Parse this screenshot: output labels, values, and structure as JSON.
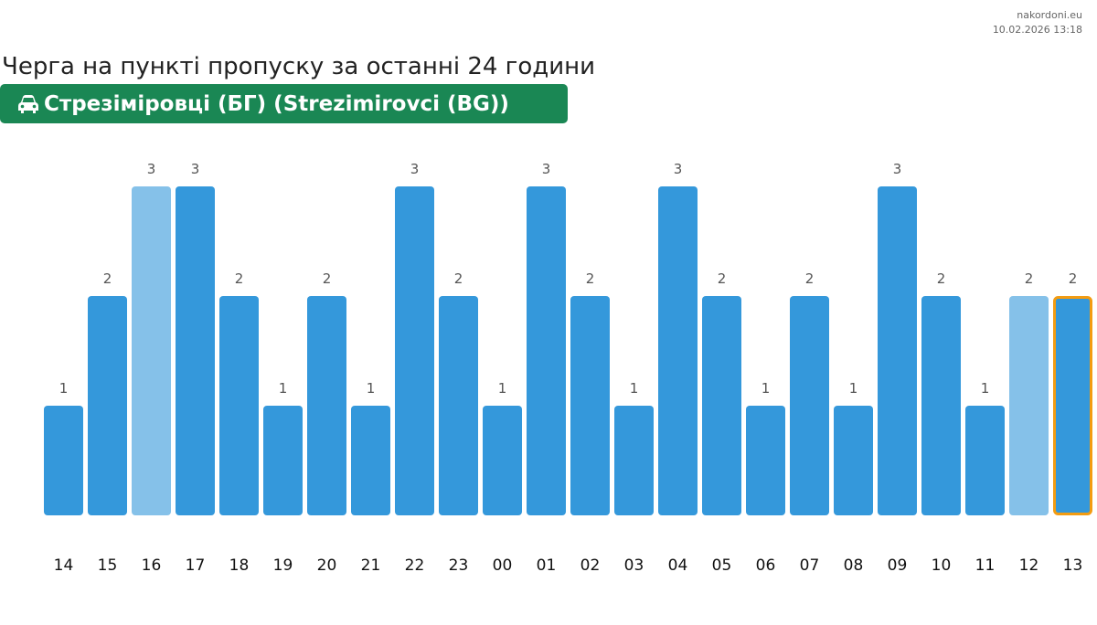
{
  "source": "nakordoni.eu",
  "timestamp": "10.02.2026 13:18",
  "title": "Черга на пункті пропуску за останні 24 години",
  "checkpoint": "Стрезіміровці (БГ) (Strezimirovci (BG))",
  "icon": "car-icon",
  "colors": {
    "bar": "#3498db",
    "bar_light": "#85c1e9",
    "highlight_border": "#f39c12",
    "badge": "#1a8754"
  },
  "chart_data": {
    "type": "bar",
    "categories": [
      "14",
      "15",
      "16",
      "17",
      "18",
      "19",
      "20",
      "21",
      "22",
      "23",
      "00",
      "01",
      "02",
      "03",
      "04",
      "05",
      "06",
      "07",
      "08",
      "09",
      "10",
      "11",
      "12",
      "13"
    ],
    "values": [
      1,
      2,
      3,
      3,
      2,
      1,
      2,
      1,
      3,
      2,
      1,
      3,
      2,
      1,
      3,
      2,
      1,
      2,
      1,
      3,
      2,
      1,
      2,
      2
    ],
    "light": [
      2,
      22
    ],
    "highlighted": 23,
    "ylim": [
      0,
      3
    ]
  }
}
